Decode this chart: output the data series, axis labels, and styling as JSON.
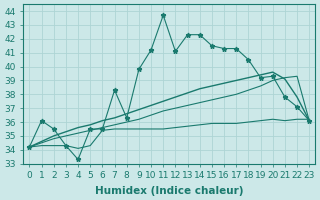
{
  "xlabel": "Humidex (Indice chaleur)",
  "x": [
    0,
    1,
    2,
    3,
    4,
    5,
    6,
    7,
    8,
    9,
    10,
    11,
    12,
    13,
    14,
    15,
    16,
    17,
    18,
    19,
    20,
    21,
    22,
    23
  ],
  "line1": [
    34.2,
    36.1,
    35.5,
    34.3,
    33.3,
    35.5,
    35.5,
    38.3,
    36.3,
    39.8,
    41.2,
    43.7,
    41.1,
    42.3,
    42.3,
    41.5,
    41.3,
    41.3,
    40.5,
    39.2,
    39.3,
    37.8,
    37.1,
    36.1
  ],
  "line2": [
    34.2,
    34.3,
    34.3,
    34.3,
    34.1,
    34.3,
    35.4,
    35.5,
    35.5,
    35.5,
    35.5,
    35.5,
    35.6,
    35.7,
    35.8,
    35.9,
    35.9,
    35.9,
    36.0,
    36.1,
    36.2,
    36.1,
    36.2,
    36.2
  ],
  "line3": [
    34.2,
    34.5,
    34.8,
    35.0,
    35.2,
    35.4,
    35.6,
    35.8,
    36.0,
    36.2,
    36.5,
    36.8,
    37.0,
    37.2,
    37.4,
    37.6,
    37.8,
    38.0,
    38.3,
    38.6,
    39.0,
    39.2,
    39.3,
    36.1
  ],
  "line4": [
    34.2,
    34.6,
    35.0,
    35.3,
    35.6,
    35.8,
    36.1,
    36.3,
    36.6,
    36.9,
    37.2,
    37.5,
    37.8,
    38.1,
    38.4,
    38.6,
    38.8,
    39.0,
    39.2,
    39.4,
    39.6,
    39.1,
    37.8,
    36.1
  ],
  "color": "#1a7a6e",
  "bg_color": "#cce8e8",
  "grid_color": "#aed4d4",
  "ylim": [
    33,
    44.5
  ],
  "yticks": [
    33,
    34,
    35,
    36,
    37,
    38,
    39,
    40,
    41,
    42,
    43,
    44
  ],
  "tick_fontsize": 6.5,
  "label_fontsize": 7.5
}
